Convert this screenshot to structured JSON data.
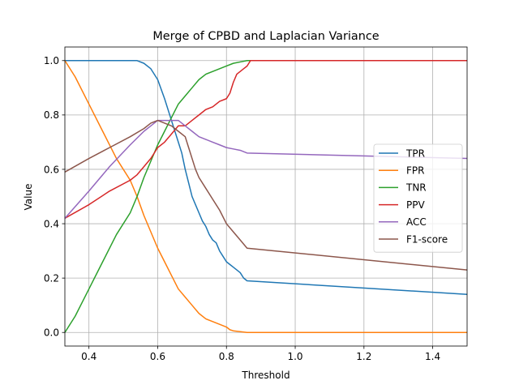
{
  "chart_data": {
    "type": "line",
    "title": "Merge of CPBD and Laplacian Variance",
    "xlabel": "Threshold",
    "ylabel": "Value",
    "xlim": [
      0.33,
      1.5
    ],
    "ylim": [
      -0.05,
      1.05
    ],
    "xticks": [
      0.4,
      0.6,
      0.8,
      1.0,
      1.2,
      1.4
    ],
    "xtick_labels": [
      "0.4",
      "0.6",
      "0.8",
      "1.0",
      "1.2",
      "1.4"
    ],
    "yticks": [
      0.0,
      0.2,
      0.4,
      0.6,
      0.8,
      1.0
    ],
    "ytick_labels": [
      "0.0",
      "0.2",
      "0.4",
      "0.6",
      "0.8",
      "1.0"
    ],
    "grid": true,
    "legend_position": "center-right",
    "series": [
      {
        "name": "TPR",
        "color": "#1f77b4",
        "x": [
          0.33,
          0.54,
          0.56,
          0.58,
          0.6,
          0.62,
          0.64,
          0.66,
          0.67,
          0.68,
          0.69,
          0.7,
          0.71,
          0.72,
          0.73,
          0.74,
          0.75,
          0.76,
          0.77,
          0.78,
          0.79,
          0.8,
          0.81,
          0.82,
          0.83,
          0.84,
          0.85,
          0.86,
          1.5
        ],
        "y": [
          1.0,
          1.0,
          0.99,
          0.97,
          0.93,
          0.86,
          0.78,
          0.7,
          0.66,
          0.6,
          0.55,
          0.5,
          0.47,
          0.44,
          0.41,
          0.39,
          0.36,
          0.34,
          0.33,
          0.3,
          0.28,
          0.26,
          0.25,
          0.24,
          0.23,
          0.22,
          0.2,
          0.19,
          0.14
        ]
      },
      {
        "name": "FPR",
        "color": "#ff7f0e",
        "x": [
          0.33,
          0.36,
          0.4,
          0.44,
          0.48,
          0.52,
          0.54,
          0.56,
          0.58,
          0.6,
          0.62,
          0.64,
          0.66,
          0.68,
          0.7,
          0.72,
          0.74,
          0.76,
          0.78,
          0.8,
          0.81,
          0.82,
          0.84,
          0.86,
          1.5
        ],
        "y": [
          1.0,
          0.94,
          0.84,
          0.74,
          0.64,
          0.56,
          0.5,
          0.43,
          0.37,
          0.31,
          0.26,
          0.21,
          0.16,
          0.13,
          0.1,
          0.07,
          0.05,
          0.04,
          0.03,
          0.02,
          0.01,
          0.006,
          0.003,
          0.0,
          0.0
        ]
      },
      {
        "name": "TNR",
        "color": "#2ca02c",
        "x": [
          0.33,
          0.36,
          0.4,
          0.44,
          0.48,
          0.52,
          0.54,
          0.56,
          0.58,
          0.6,
          0.62,
          0.64,
          0.66,
          0.68,
          0.7,
          0.72,
          0.74,
          0.76,
          0.78,
          0.8,
          0.82,
          0.84,
          0.86,
          1.5
        ],
        "y": [
          0.0,
          0.06,
          0.16,
          0.26,
          0.36,
          0.44,
          0.5,
          0.57,
          0.63,
          0.69,
          0.74,
          0.79,
          0.84,
          0.87,
          0.9,
          0.93,
          0.95,
          0.96,
          0.97,
          0.98,
          0.99,
          0.995,
          1.0,
          1.0
        ]
      },
      {
        "name": "PPV",
        "color": "#d62728",
        "x": [
          0.33,
          0.4,
          0.46,
          0.52,
          0.54,
          0.56,
          0.58,
          0.6,
          0.62,
          0.64,
          0.66,
          0.68,
          0.7,
          0.72,
          0.74,
          0.76,
          0.78,
          0.8,
          0.81,
          0.82,
          0.83,
          0.84,
          0.85,
          0.86,
          0.87,
          1.5
        ],
        "y": [
          0.42,
          0.47,
          0.52,
          0.56,
          0.58,
          0.61,
          0.64,
          0.68,
          0.7,
          0.73,
          0.76,
          0.76,
          0.78,
          0.8,
          0.82,
          0.83,
          0.85,
          0.86,
          0.88,
          0.92,
          0.95,
          0.96,
          0.97,
          0.98,
          1.0,
          1.0
        ]
      },
      {
        "name": "ACC",
        "color": "#9467bd",
        "x": [
          0.33,
          0.4,
          0.46,
          0.52,
          0.56,
          0.58,
          0.6,
          0.62,
          0.64,
          0.66,
          0.68,
          0.7,
          0.72,
          0.74,
          0.76,
          0.78,
          0.8,
          0.82,
          0.84,
          0.86,
          1.5
        ],
        "y": [
          0.42,
          0.52,
          0.61,
          0.69,
          0.74,
          0.76,
          0.78,
          0.78,
          0.78,
          0.78,
          0.76,
          0.74,
          0.72,
          0.71,
          0.7,
          0.69,
          0.68,
          0.675,
          0.67,
          0.66,
          0.64
        ]
      },
      {
        "name": "F1-score",
        "color": "#8c564b",
        "x": [
          0.33,
          0.4,
          0.46,
          0.52,
          0.56,
          0.58,
          0.6,
          0.62,
          0.64,
          0.66,
          0.68,
          0.69,
          0.7,
          0.71,
          0.72,
          0.74,
          0.76,
          0.78,
          0.8,
          0.82,
          0.84,
          0.86,
          1.5
        ],
        "y": [
          0.59,
          0.64,
          0.68,
          0.72,
          0.75,
          0.77,
          0.78,
          0.77,
          0.76,
          0.74,
          0.72,
          0.68,
          0.64,
          0.6,
          0.57,
          0.53,
          0.49,
          0.45,
          0.4,
          0.37,
          0.34,
          0.31,
          0.23
        ]
      }
    ]
  }
}
